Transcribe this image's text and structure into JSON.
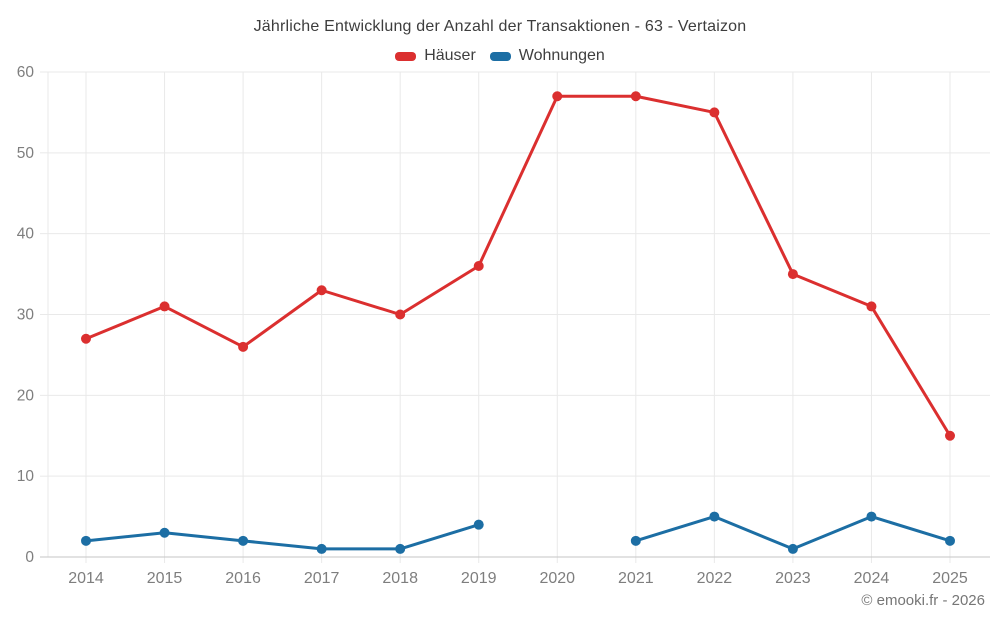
{
  "header": {
    "title": "Jährliche Entwicklung der Anzahl der Transaktionen - 63 - Vertaizon"
  },
  "legend": {
    "items": [
      {
        "label": "Häuser",
        "color": "#db2f2f"
      },
      {
        "label": "Wohnungen",
        "color": "#1c6ea4"
      }
    ]
  },
  "chart_data": {
    "type": "line",
    "title": "Jährliche Entwicklung der Anzahl der Transaktionen - 63 - Vertaizon",
    "x": [
      "2014",
      "2015",
      "2016",
      "2017",
      "2018",
      "2019",
      "2020",
      "2021",
      "2022",
      "2023",
      "2024",
      "2025"
    ],
    "series": [
      {
        "name": "Häuser",
        "color": "#db2f2f",
        "values": [
          27,
          31,
          26,
          33,
          30,
          36,
          57,
          57,
          55,
          35,
          31,
          15
        ]
      },
      {
        "name": "Wohnungen",
        "color": "#1c6ea4",
        "values": [
          2,
          3,
          2,
          1,
          1,
          4,
          null,
          2,
          5,
          1,
          5,
          2
        ]
      }
    ],
    "ylim": [
      0,
      60
    ],
    "yticks": [
      0,
      10,
      20,
      30,
      40,
      50,
      60
    ],
    "grid": true,
    "legend_position": "top",
    "xlabel": "",
    "ylabel": ""
  },
  "footer": {
    "credit": "© emooki.fr - 2026"
  },
  "style": {
    "grid_color": "#e9e9e9",
    "axis_color": "#c6c6c6",
    "tick_text_color": "#7e7e7e",
    "point_radius": 5,
    "line_width": 3
  }
}
